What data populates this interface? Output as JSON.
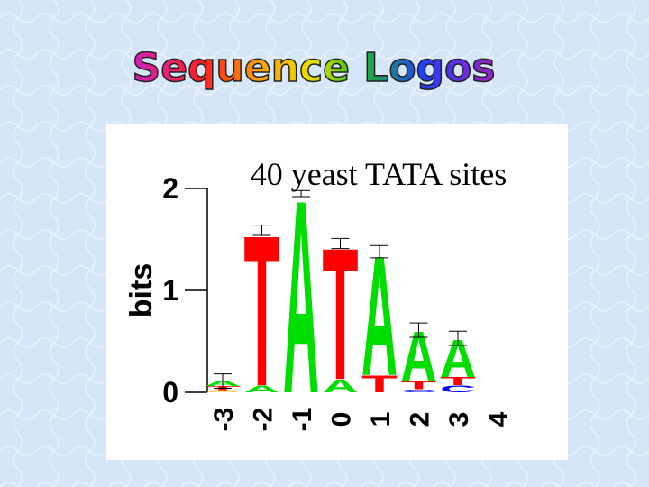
{
  "chart_data": {
    "type": "logo",
    "slide_title": "Sequence Logos",
    "title": "40 yeast TATA sites",
    "ylabel": "bits",
    "categories": [
      "-3",
      "-2",
      "-1",
      "0",
      "1",
      "2",
      "3",
      "4"
    ],
    "series": [
      {
        "name": "A",
        "color": "#00dd00",
        "values": [
          0.05,
          0.07,
          1.95,
          0.13,
          1.21,
          0.5,
          0.38,
          0
        ]
      },
      {
        "name": "T",
        "color": "#ff0000",
        "values": [
          0.04,
          1.52,
          0,
          1.33,
          0.17,
          0.08,
          0.08,
          0
        ]
      },
      {
        "name": "C",
        "color": "#0000ff",
        "values": [
          0,
          0,
          0,
          0,
          0,
          0.03,
          0.07,
          0
        ]
      },
      {
        "name": "G",
        "color": "#ffb000",
        "values": [
          0.02,
          0,
          0,
          0,
          0,
          0,
          0,
          0
        ]
      }
    ],
    "errors": [
      0.07,
      0.05,
      0.03,
      0.05,
      0.06,
      0.07,
      0.07,
      null
    ],
    "ylim": [
      0,
      2
    ],
    "yticks": [
      0,
      1,
      2
    ]
  }
}
